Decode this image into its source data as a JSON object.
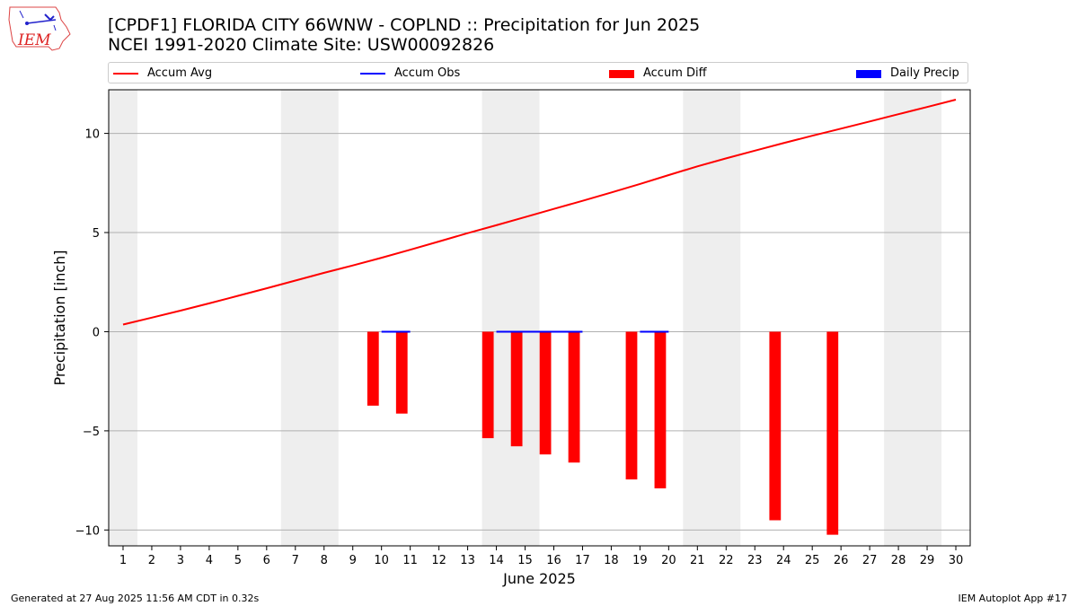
{
  "header": {
    "title_line1": "[CPDF1] FLORIDA CITY 66WNW - COPLND :: Precipitation for Jun 2025",
    "title_line2": "NCEI 1991-2020 Climate Site: USW00092826",
    "logo_text": "IEM"
  },
  "footer": {
    "left": "Generated at 27 Aug 2025 11:56 AM CDT in 0.32s",
    "right": "IEM Autoplot App #17"
  },
  "colors": {
    "accum_avg": "#ff0000",
    "accum_obs": "#0000ff",
    "accum_diff": "#ff0000",
    "daily_precip": "#0000ff",
    "weekend_shade": "#eeeeee",
    "grid": "#b0b0b0"
  },
  "chart_data": {
    "type": "bar",
    "xlabel": "June 2025",
    "ylabel": "Precipitation [inch]",
    "ylim": [
      -10.8,
      12.2
    ],
    "yticks": [
      -10,
      -5,
      0,
      5,
      10
    ],
    "ytick_labels": [
      "−10",
      "−5",
      "0",
      "5",
      "10"
    ],
    "xlim": [
      0.5,
      30.5
    ],
    "x": [
      1,
      2,
      3,
      4,
      5,
      6,
      7,
      8,
      9,
      10,
      11,
      12,
      13,
      14,
      15,
      16,
      17,
      18,
      19,
      20,
      21,
      22,
      23,
      24,
      25,
      26,
      27,
      28,
      29,
      30
    ],
    "xtick_labels": [
      "1",
      "2",
      "3",
      "4",
      "5",
      "6",
      "7",
      "8",
      "9",
      "10",
      "11",
      "12",
      "13",
      "14",
      "15",
      "16",
      "17",
      "18",
      "19",
      "20",
      "21",
      "22",
      "23",
      "24",
      "25",
      "26",
      "27",
      "28",
      "29",
      "30"
    ],
    "weekend_shading": [
      [
        0.5,
        1.5
      ],
      [
        6.5,
        8.5
      ],
      [
        13.5,
        15.5
      ],
      [
        20.5,
        22.5
      ],
      [
        27.5,
        29.5
      ]
    ],
    "grid": "horizontal",
    "legend_position": "top",
    "legend": [
      "Accum Avg",
      "Accum Obs",
      "Accum Diff",
      "Daily Precip"
    ],
    "series": [
      {
        "name": "Accum Avg",
        "kind": "line",
        "values": [
          0.36,
          0.71,
          1.06,
          1.43,
          1.81,
          2.19,
          2.58,
          2.97,
          3.34,
          3.73,
          4.13,
          4.55,
          4.97,
          5.37,
          5.78,
          6.19,
          6.6,
          7.02,
          7.45,
          7.9,
          8.34,
          8.74,
          9.13,
          9.51,
          9.88,
          10.24,
          10.6,
          10.97,
          11.33,
          11.7
        ]
      },
      {
        "name": "Accum Obs",
        "kind": "line",
        "segments": [
          [
            10,
            11
          ],
          [
            14,
            17
          ],
          [
            19,
            20
          ]
        ],
        "values": [
          0,
          0,
          0,
          0,
          0,
          0,
          0,
          0,
          0,
          0,
          0,
          0,
          0,
          0,
          0,
          0,
          0,
          0,
          0,
          0,
          0,
          0,
          0,
          0,
          0,
          0,
          0,
          0,
          0,
          0
        ]
      },
      {
        "name": "Accum Diff",
        "kind": "bar",
        "points": [
          {
            "x": 10,
            "y": -3.73
          },
          {
            "x": 11,
            "y": -4.13
          },
          {
            "x": 14,
            "y": -5.37
          },
          {
            "x": 15,
            "y": -5.78
          },
          {
            "x": 16,
            "y": -6.19
          },
          {
            "x": 17,
            "y": -6.6
          },
          {
            "x": 19,
            "y": -7.45
          },
          {
            "x": 20,
            "y": -7.9
          },
          {
            "x": 24,
            "y": -9.51
          },
          {
            "x": 26,
            "y": -10.24
          }
        ]
      },
      {
        "name": "Daily Precip",
        "kind": "bar",
        "points": []
      }
    ]
  }
}
